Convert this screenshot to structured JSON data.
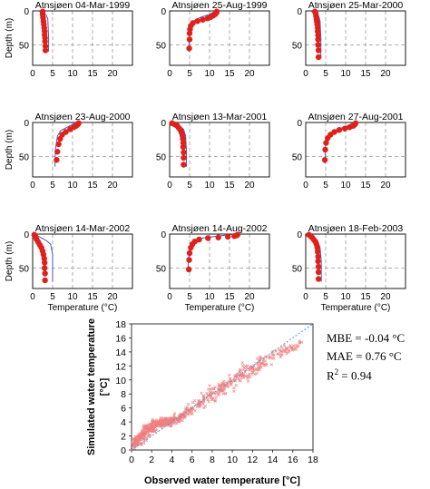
{
  "chart_data": [
    {
      "type": "line",
      "panels": [
        {
          "title": "Atnsjøen 04-Mar-1999",
          "observed": {
            "temperature": [
              2.5,
              2.5,
              2.6,
              2.7,
              2.8,
              2.9,
              3.0,
              3.0,
              3.1,
              3.1,
              3.2,
              3.2
            ],
            "depth": [
              1,
              5,
              10,
              15,
              20,
              25,
              30,
              35,
              40,
              45,
              52,
              58
            ]
          },
          "simulated": {
            "temperature": [
              1.2,
              2.6,
              3.4,
              3.8,
              4.0,
              4.0
            ],
            "depth": [
              0,
              2,
              6,
              12,
              40,
              60
            ]
          }
        },
        {
          "title": "Atnsjøen 25-Aug-1999",
          "observed": {
            "temperature": [
              11.8,
              11.7,
              11.4,
              10.9,
              10.3,
              9.5,
              8.3,
              7.0,
              5.8,
              5.3,
              5.1,
              5.0,
              5.0,
              4.9
            ],
            "depth": [
              1,
              3,
              5,
              7,
              9,
              11,
              13,
              15,
              18,
              22,
              27,
              33,
              42,
              55
            ]
          },
          "simulated": {
            "temperature": [
              11.5,
              10.0,
              7.5,
              6.0,
              5.2,
              4.9,
              4.8
            ],
            "depth": [
              0,
              5,
              10,
              15,
              20,
              40,
              60
            ]
          }
        },
        {
          "title": "Atnsjøen 25-Mar-2000",
          "observed": {
            "temperature": [
              2.3,
              2.5,
              2.6,
              2.7,
              2.8,
              2.9,
              3.0,
              3.0,
              3.1,
              3.1,
              3.1,
              3.2,
              3.2
            ],
            "depth": [
              1,
              4,
              8,
              12,
              16,
              20,
              25,
              30,
              36,
              42,
              50,
              58,
              68
            ]
          },
          "simulated": {
            "temperature": [
              1.0,
              2.7,
              3.3,
              3.6,
              3.8,
              3.8
            ],
            "depth": [
              0,
              3,
              8,
              15,
              40,
              70
            ]
          }
        },
        {
          "title": "Atnsjøen 23-Aug-2000",
          "observed": {
            "temperature": [
              11.5,
              11.3,
              10.9,
              10.3,
              9.4,
              8.3,
              7.4,
              6.9,
              6.5,
              6.2,
              6.0
            ],
            "depth": [
              1,
              3,
              5,
              7,
              10,
              14,
              18,
              24,
              32,
              43,
              55
            ]
          },
          "simulated": {
            "temperature": [
              11.0,
              9.0,
              7.0,
              6.2,
              5.7,
              5.6
            ],
            "depth": [
              0,
              6,
              12,
              20,
              40,
              65
            ]
          }
        },
        {
          "title": "Atnsjøen 13-Mar-2001",
          "observed": {
            "temperature": [
              0.6,
              1.3,
              1.9,
              2.3,
              2.7,
              3.0,
              3.2,
              3.3,
              3.4,
              3.4,
              3.5,
              3.5,
              3.5
            ],
            "depth": [
              1,
              3,
              5,
              8,
              11,
              15,
              19,
              24,
              30,
              36,
              44,
              52,
              62
            ]
          },
          "simulated": {
            "temperature": [
              0.5,
              2.5,
              3.5,
              4.0,
              4.2,
              4.2
            ],
            "depth": [
              0,
              5,
              10,
              20,
              40,
              65
            ]
          }
        },
        {
          "title": "Atnsjøen 27-Aug-2001",
          "observed": {
            "temperature": [
              12.5,
              12.3,
              11.9,
              11.0,
              9.8,
              8.4,
              7.2,
              6.2,
              5.5,
              5.1,
              4.9,
              4.8
            ],
            "depth": [
              1,
              3,
              5,
              7,
              9,
              11,
              14,
              18,
              23,
              30,
              40,
              55
            ]
          },
          "simulated": {
            "temperature": [
              12.0,
              10.5,
              8.0,
              6.0,
              5.0,
              4.8
            ],
            "depth": [
              0,
              5,
              10,
              15,
              25,
              60
            ]
          }
        },
        {
          "title": "Atnsjøen 14-Mar-2002",
          "observed": {
            "temperature": [
              0.4,
              0.7,
              1.0,
              1.4,
              1.8,
              2.2,
              2.5,
              2.7,
              2.9,
              3.0,
              3.0,
              3.1,
              3.1
            ],
            "depth": [
              1,
              4,
              8,
              12,
              16,
              20,
              25,
              30,
              36,
              42,
              50,
              58,
              68
            ]
          },
          "simulated": {
            "temperature": [
              0.5,
              2.0,
              3.5,
              4.5,
              5.0,
              5.0
            ],
            "depth": [
              0,
              5,
              10,
              15,
              30,
              70
            ]
          }
        },
        {
          "title": "Atnsjøen 14-Aug-2002",
          "observed": {
            "temperature": [
              17.0,
              16.8,
              16.2,
              14.6,
              12.2,
              9.6,
              7.4,
              6.3,
              5.7,
              5.3,
              5.0,
              4.9,
              4.8
            ],
            "depth": [
              1,
              2,
              3,
              4,
              5,
              6,
              8,
              11,
              15,
              20,
              28,
              38,
              52
            ]
          },
          "simulated": {
            "temperature": [
              16.5,
              12.0,
              8.0,
              6.0,
              5.0,
              4.5
            ],
            "depth": [
              0,
              3,
              6,
              10,
              18,
              55
            ]
          }
        },
        {
          "title": "Atnsjøen 18-Feb-2003",
          "observed": {
            "temperature": [
              0.8,
              1.2,
              1.6,
              2.0,
              2.4,
              2.7,
              2.9,
              3.0,
              3.1,
              3.1,
              3.2,
              3.2,
              3.2
            ],
            "depth": [
              1,
              3,
              5,
              8,
              11,
              15,
              20,
              26,
              33,
              40,
              48,
              56,
              66
            ]
          },
          "simulated": {
            "temperature": [
              0.5,
              2.0,
              3.0,
              3.6,
              3.9,
              3.9
            ],
            "depth": [
              0,
              4,
              10,
              20,
              40,
              70
            ]
          }
        }
      ],
      "xlabel": "Temperature (°C)",
      "ylabel": "Depth (m)",
      "xlim": [
        0,
        25
      ],
      "ylim": [
        80,
        0
      ],
      "xticks": [
        "0",
        "5",
        "10",
        "15",
        "20"
      ],
      "yticks": [
        "0",
        "50"
      ],
      "grid": true,
      "grid_style": "dashed",
      "colors": {
        "observed": "#e0201b",
        "simulated": "#4a57c7"
      }
    },
    {
      "type": "scatter",
      "xlabel": "Observed water temperature [°C]",
      "ylabel": "Simulated water temperature [°C]",
      "xlim": [
        0,
        18
      ],
      "ylim": [
        0,
        18
      ],
      "xticks": [
        "0",
        "2",
        "4",
        "6",
        "8",
        "10",
        "12",
        "14",
        "16",
        "18"
      ],
      "yticks": [
        "0",
        "2",
        "4",
        "6",
        "8",
        "10",
        "12",
        "14",
        "16",
        "18"
      ],
      "reference_line": {
        "x": [
          0,
          18
        ],
        "y": [
          0,
          18
        ]
      },
      "point_cloud_anchors": {
        "x": [
          0.2,
          0.5,
          1.0,
          1.5,
          2.0,
          2.5,
          3.0,
          3.5,
          4.0,
          5.0,
          6.0,
          7.0,
          8.0,
          9.0,
          10.0,
          11.0,
          12.0,
          13.0,
          15.0,
          17.0
        ],
        "y": [
          0.8,
          1.3,
          2.0,
          2.6,
          3.2,
          3.6,
          3.9,
          4.0,
          4.1,
          4.9,
          5.9,
          7.0,
          8.0,
          8.9,
          9.8,
          10.8,
          11.5,
          12.5,
          14.0,
          15.3
        ],
        "spread": [
          0.6,
          0.7,
          0.9,
          0.9,
          0.8,
          0.6,
          0.5,
          0.5,
          0.6,
          0.7,
          0.8,
          0.9,
          1.0,
          1.0,
          1.1,
          1.1,
          1.0,
          0.9,
          0.6,
          0.4
        ]
      },
      "colors": {
        "points": "#f08080",
        "reference": "#5b8fd6"
      }
    }
  ],
  "stats": {
    "mbe": "MBE = -0.04 °C",
    "mae": "MAE = 0.76 °C",
    "r2_prefix": "R",
    "r2_sup": "2",
    "r2_suffix": " = 0.94"
  }
}
